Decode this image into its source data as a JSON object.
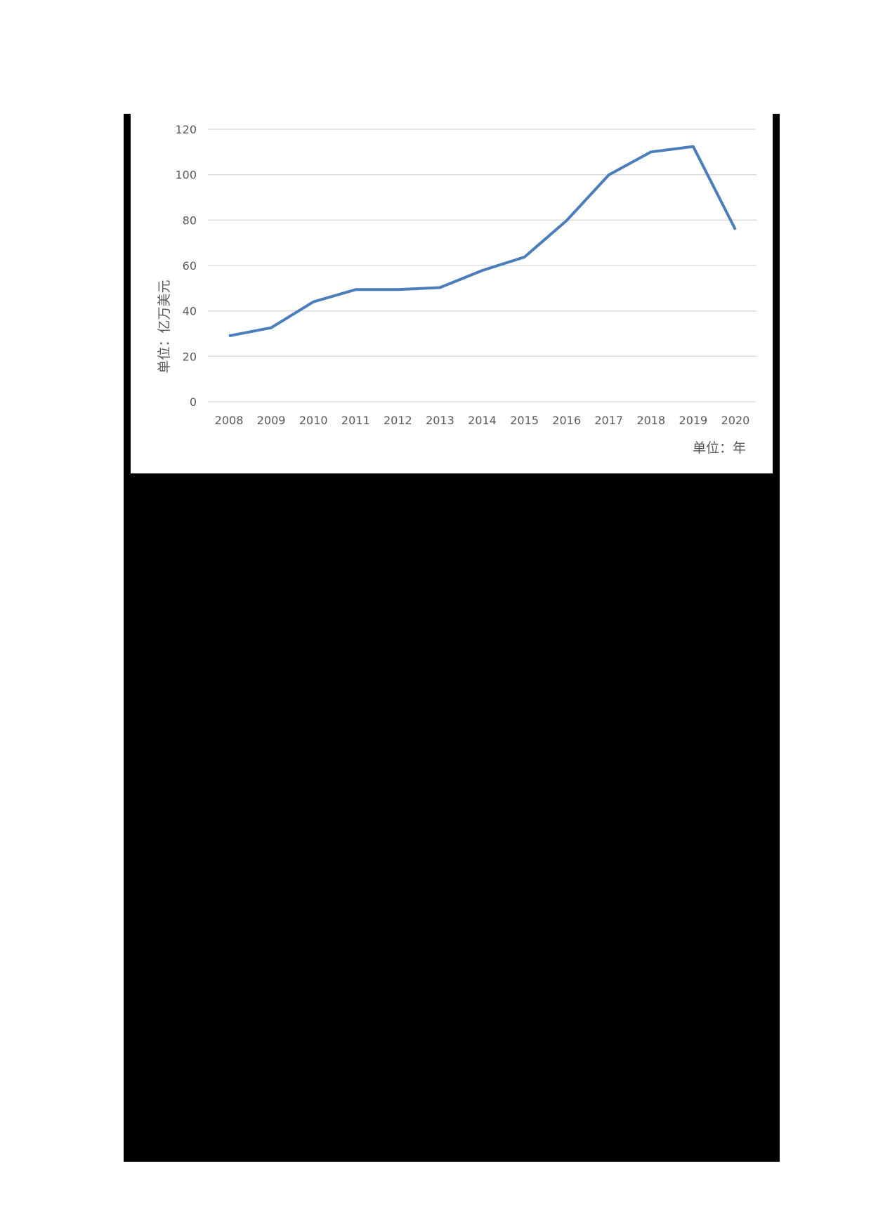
{
  "chart_data": {
    "type": "line",
    "title": "",
    "xlabel": "单位：年",
    "ylabel": "单位：亿万美元",
    "categories": [
      "2008",
      "2009",
      "2010",
      "2011",
      "2012",
      "2013",
      "2014",
      "2015",
      "2016",
      "2017",
      "2018",
      "2019",
      "2020"
    ],
    "series": [
      {
        "name": "",
        "color": "#4a7ebb",
        "values": [
          29,
          32.6,
          44,
          49.4,
          49.4,
          50.3,
          57.8,
          63.7,
          79.8,
          99.9,
          110,
          112.4,
          75.8
        ]
      }
    ],
    "y_ticks": [
      "0",
      "20",
      "40",
      "60",
      "80",
      "100",
      "120"
    ],
    "ylim": [
      0,
      120
    ],
    "grid": true,
    "legend": "none"
  },
  "colors": {
    "line": "#4a7ebb",
    "grid": "#d9d9d9",
    "tick_text": "#595959",
    "frame": "#000000"
  }
}
